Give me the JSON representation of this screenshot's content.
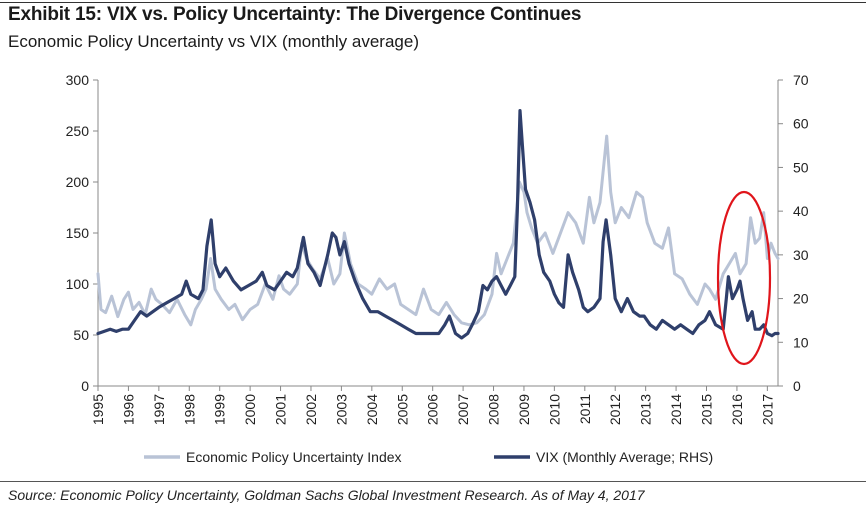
{
  "header": {
    "title": "Exhibit 15: VIX vs. Policy Uncertainty: The Divergence Continues",
    "subtitle": "Economic Policy Uncertainty vs VIX (monthly average)"
  },
  "footer": {
    "source": "Source: Economic Policy Uncertainty, Goldman Sachs Global Investment Research. As of May 4, 2017"
  },
  "colors": {
    "epu": "#b9c3d6",
    "vix": "#2f3f6b",
    "highlight": "#e0151b",
    "axis": "#888888"
  },
  "chart_data": {
    "type": "line",
    "title": "Economic Policy Uncertainty vs VIX (monthly average)",
    "x_ticks": [
      "1995",
      "1996",
      "1997",
      "1998",
      "1999",
      "2000",
      "2001",
      "2002",
      "2003",
      "2004",
      "2005",
      "2006",
      "2007",
      "2008",
      "2009",
      "2010",
      "2011",
      "2012",
      "2013",
      "2014",
      "2015",
      "2016",
      "2017"
    ],
    "xlim": [
      1995.0,
      2017.35
    ],
    "y_left": {
      "lim": [
        0,
        300
      ],
      "ticks": [
        "0",
        "50",
        "100",
        "150",
        "200",
        "250",
        "300"
      ]
    },
    "y_right": {
      "lim": [
        0,
        70
      ],
      "ticks": [
        "0",
        "10",
        "20",
        "30",
        "40",
        "50",
        "60",
        "70"
      ]
    },
    "legend": {
      "placement": "bottom"
    },
    "highlight_annotation": "red ellipse around 2015.7-2017.3",
    "series": [
      {
        "name": "Economic Policy Uncertainty Index",
        "axis": "left",
        "points": [
          [
            1995.0,
            110
          ],
          [
            1995.1,
            75
          ],
          [
            1995.25,
            72
          ],
          [
            1995.45,
            88
          ],
          [
            1995.65,
            68
          ],
          [
            1995.85,
            85
          ],
          [
            1996.0,
            92
          ],
          [
            1996.15,
            75
          ],
          [
            1996.35,
            82
          ],
          [
            1996.55,
            70
          ],
          [
            1996.75,
            95
          ],
          [
            1996.9,
            85
          ],
          [
            1997.1,
            80
          ],
          [
            1997.35,
            72
          ],
          [
            1997.6,
            85
          ],
          [
            1997.85,
            70
          ],
          [
            1998.05,
            60
          ],
          [
            1998.2,
            75
          ],
          [
            1998.4,
            85
          ],
          [
            1998.55,
            95
          ],
          [
            1998.7,
            125
          ],
          [
            1998.85,
            95
          ],
          [
            1999.05,
            85
          ],
          [
            1999.3,
            75
          ],
          [
            1999.5,
            80
          ],
          [
            1999.75,
            65
          ],
          [
            2000.0,
            75
          ],
          [
            2000.25,
            80
          ],
          [
            2000.5,
            100
          ],
          [
            2000.75,
            85
          ],
          [
            2000.95,
            108
          ],
          [
            2001.1,
            95
          ],
          [
            2001.3,
            90
          ],
          [
            2001.55,
            100
          ],
          [
            2001.7,
            140
          ],
          [
            2001.85,
            125
          ],
          [
            2002.05,
            115
          ],
          [
            2002.3,
            105
          ],
          [
            2002.55,
            125
          ],
          [
            2002.75,
            100
          ],
          [
            2002.95,
            110
          ],
          [
            2003.1,
            150
          ],
          [
            2003.3,
            120
          ],
          [
            2003.55,
            100
          ],
          [
            2003.8,
            95
          ],
          [
            2004.0,
            90
          ],
          [
            2004.25,
            105
          ],
          [
            2004.5,
            95
          ],
          [
            2004.75,
            100
          ],
          [
            2004.95,
            80
          ],
          [
            2005.2,
            75
          ],
          [
            2005.45,
            70
          ],
          [
            2005.7,
            95
          ],
          [
            2005.95,
            75
          ],
          [
            2006.2,
            70
          ],
          [
            2006.45,
            82
          ],
          [
            2006.7,
            70
          ],
          [
            2006.95,
            62
          ],
          [
            2007.2,
            60
          ],
          [
            2007.45,
            62
          ],
          [
            2007.7,
            70
          ],
          [
            2007.95,
            90
          ],
          [
            2008.1,
            130
          ],
          [
            2008.25,
            110
          ],
          [
            2008.45,
            125
          ],
          [
            2008.65,
            140
          ],
          [
            2008.85,
            200
          ],
          [
            2009.0,
            190
          ],
          [
            2009.1,
            170
          ],
          [
            2009.25,
            155
          ],
          [
            2009.45,
            140
          ],
          [
            2009.7,
            150
          ],
          [
            2009.95,
            130
          ],
          [
            2010.2,
            150
          ],
          [
            2010.45,
            170
          ],
          [
            2010.7,
            160
          ],
          [
            2010.95,
            140
          ],
          [
            2011.15,
            185
          ],
          [
            2011.3,
            160
          ],
          [
            2011.5,
            180
          ],
          [
            2011.6,
            210
          ],
          [
            2011.72,
            245
          ],
          [
            2011.85,
            190
          ],
          [
            2012.0,
            160
          ],
          [
            2012.2,
            175
          ],
          [
            2012.45,
            165
          ],
          [
            2012.7,
            190
          ],
          [
            2012.9,
            185
          ],
          [
            2013.05,
            160
          ],
          [
            2013.3,
            140
          ],
          [
            2013.55,
            135
          ],
          [
            2013.75,
            155
          ],
          [
            2013.95,
            110
          ],
          [
            2014.2,
            105
          ],
          [
            2014.45,
            90
          ],
          [
            2014.7,
            80
          ],
          [
            2014.95,
            100
          ],
          [
            2015.1,
            95
          ],
          [
            2015.3,
            85
          ],
          [
            2015.55,
            110
          ],
          [
            2015.75,
            120
          ],
          [
            2015.95,
            130
          ],
          [
            2016.1,
            110
          ],
          [
            2016.3,
            120
          ],
          [
            2016.45,
            165
          ],
          [
            2016.6,
            140
          ],
          [
            2016.75,
            145
          ],
          [
            2016.88,
            170
          ],
          [
            2017.0,
            125
          ],
          [
            2017.12,
            140
          ],
          [
            2017.25,
            130
          ],
          [
            2017.35,
            125
          ]
        ]
      },
      {
        "name": "VIX (Monthly Average; RHS)",
        "axis": "right",
        "points": [
          [
            1995.0,
            12
          ],
          [
            1995.2,
            12.5
          ],
          [
            1995.4,
            13
          ],
          [
            1995.6,
            12.5
          ],
          [
            1995.8,
            13
          ],
          [
            1996.0,
            13
          ],
          [
            1996.2,
            15
          ],
          [
            1996.4,
            17
          ],
          [
            1996.6,
            16
          ],
          [
            1996.8,
            17
          ],
          [
            1997.0,
            18
          ],
          [
            1997.25,
            19
          ],
          [
            1997.5,
            20
          ],
          [
            1997.75,
            21
          ],
          [
            1997.9,
            24
          ],
          [
            1998.05,
            21
          ],
          [
            1998.3,
            20
          ],
          [
            1998.45,
            22
          ],
          [
            1998.58,
            32
          ],
          [
            1998.72,
            38
          ],
          [
            1998.85,
            28
          ],
          [
            1999.0,
            25
          ],
          [
            1999.2,
            27
          ],
          [
            1999.45,
            24
          ],
          [
            1999.7,
            22
          ],
          [
            1999.95,
            23
          ],
          [
            2000.2,
            24
          ],
          [
            2000.4,
            26
          ],
          [
            2000.55,
            23
          ],
          [
            2000.8,
            22
          ],
          [
            2001.0,
            24
          ],
          [
            2001.2,
            26
          ],
          [
            2001.4,
            25
          ],
          [
            2001.55,
            27
          ],
          [
            2001.75,
            34
          ],
          [
            2001.9,
            28
          ],
          [
            2002.1,
            26
          ],
          [
            2002.3,
            23
          ],
          [
            2002.55,
            30
          ],
          [
            2002.7,
            35
          ],
          [
            2002.82,
            34
          ],
          [
            2002.95,
            30
          ],
          [
            2003.1,
            33
          ],
          [
            2003.25,
            28
          ],
          [
            2003.45,
            24
          ],
          [
            2003.7,
            20
          ],
          [
            2003.95,
            17
          ],
          [
            2004.2,
            17
          ],
          [
            2004.45,
            16
          ],
          [
            2004.7,
            15
          ],
          [
            2004.95,
            14
          ],
          [
            2005.2,
            13
          ],
          [
            2005.45,
            12
          ],
          [
            2005.7,
            12
          ],
          [
            2005.95,
            12
          ],
          [
            2006.2,
            12
          ],
          [
            2006.4,
            14
          ],
          [
            2006.55,
            16
          ],
          [
            2006.75,
            12
          ],
          [
            2006.95,
            11
          ],
          [
            2007.15,
            12
          ],
          [
            2007.3,
            14
          ],
          [
            2007.5,
            17
          ],
          [
            2007.65,
            23
          ],
          [
            2007.8,
            22
          ],
          [
            2007.95,
            24
          ],
          [
            2008.1,
            25
          ],
          [
            2008.25,
            23
          ],
          [
            2008.4,
            21
          ],
          [
            2008.55,
            23
          ],
          [
            2008.7,
            25
          ],
          [
            2008.78,
            40
          ],
          [
            2008.87,
            63
          ],
          [
            2008.95,
            55
          ],
          [
            2009.05,
            45
          ],
          [
            2009.2,
            42
          ],
          [
            2009.35,
            38
          ],
          [
            2009.5,
            30
          ],
          [
            2009.65,
            26
          ],
          [
            2009.85,
            24
          ],
          [
            2010.0,
            21
          ],
          [
            2010.15,
            19
          ],
          [
            2010.3,
            18
          ],
          [
            2010.45,
            30
          ],
          [
            2010.6,
            26
          ],
          [
            2010.8,
            22
          ],
          [
            2010.95,
            18
          ],
          [
            2011.1,
            17
          ],
          [
            2011.3,
            18
          ],
          [
            2011.5,
            20
          ],
          [
            2011.6,
            33
          ],
          [
            2011.7,
            38
          ],
          [
            2011.85,
            30
          ],
          [
            2012.0,
            20
          ],
          [
            2012.2,
            17
          ],
          [
            2012.4,
            20
          ],
          [
            2012.6,
            17
          ],
          [
            2012.8,
            16
          ],
          [
            2012.95,
            16
          ],
          [
            2013.15,
            14
          ],
          [
            2013.35,
            13
          ],
          [
            2013.55,
            15
          ],
          [
            2013.75,
            14
          ],
          [
            2013.95,
            13
          ],
          [
            2014.15,
            14
          ],
          [
            2014.35,
            13
          ],
          [
            2014.55,
            12
          ],
          [
            2014.75,
            14
          ],
          [
            2014.95,
            15
          ],
          [
            2015.1,
            17
          ],
          [
            2015.3,
            14
          ],
          [
            2015.55,
            13
          ],
          [
            2015.65,
            20
          ],
          [
            2015.72,
            25
          ],
          [
            2015.85,
            20
          ],
          [
            2016.0,
            22
          ],
          [
            2016.1,
            24
          ],
          [
            2016.2,
            20
          ],
          [
            2016.35,
            15
          ],
          [
            2016.5,
            17
          ],
          [
            2016.6,
            13
          ],
          [
            2016.75,
            13
          ],
          [
            2016.88,
            14
          ],
          [
            2017.0,
            12
          ],
          [
            2017.15,
            11.5
          ],
          [
            2017.25,
            12
          ],
          [
            2017.35,
            12
          ]
        ]
      }
    ]
  }
}
